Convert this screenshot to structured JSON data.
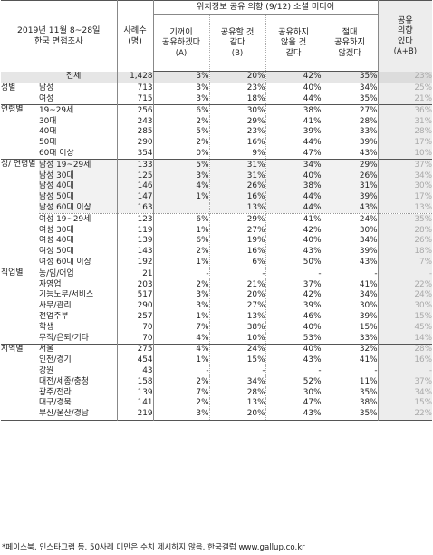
{
  "header": {
    "survey_line1": "2019년 11월 8~28일",
    "survey_line2": "한국 면접조사",
    "sample_line1": "사례수",
    "sample_line2": "(명)",
    "intent_title": "위치정보 공유 의향 (9/12) 소셜 미디어",
    "columns": [
      {
        "l1": "기꺼이",
        "l2": "공유하겠다",
        "l3": "(A)"
      },
      {
        "l1": "공유할 것",
        "l2": "같다",
        "l3": "(B)"
      },
      {
        "l1": "공유하지",
        "l2": "않을 것",
        "l3": "같다"
      },
      {
        "l1": "절대",
        "l2": "공유하지",
        "l3": "않겠다"
      }
    ],
    "share_l1": "공유",
    "share_l2": "의향",
    "share_l3": "있다",
    "share_l4": "(A+B)"
  },
  "rows": [
    {
      "group": "",
      "label": "전체",
      "n": "1,428",
      "a": "3%",
      "b": "20%",
      "c": "42%",
      "d": "35%",
      "ab": "23%",
      "total": true
    },
    {
      "group": "성별",
      "label": "남성",
      "n": "713",
      "a": "3%",
      "b": "23%",
      "c": "40%",
      "d": "34%",
      "ab": "25%",
      "gtop": true
    },
    {
      "group": "",
      "label": "여성",
      "n": "715",
      "a": "3%",
      "b": "18%",
      "c": "44%",
      "d": "35%",
      "ab": "21%"
    },
    {
      "group": "연령별",
      "label": "19~29세",
      "n": "256",
      "a": "6%",
      "b": "30%",
      "c": "38%",
      "d": "27%",
      "ab": "36%",
      "gtop": true
    },
    {
      "group": "",
      "label": "30대",
      "n": "243",
      "a": "2%",
      "b": "29%",
      "c": "41%",
      "d": "28%",
      "ab": "31%"
    },
    {
      "group": "",
      "label": "40대",
      "n": "285",
      "a": "5%",
      "b": "23%",
      "c": "39%",
      "d": "33%",
      "ab": "28%"
    },
    {
      "group": "",
      "label": "50대",
      "n": "290",
      "a": "2%",
      "b": "16%",
      "c": "44%",
      "d": "39%",
      "ab": "17%"
    },
    {
      "group": "",
      "label": "60대 이상",
      "n": "354",
      "a": "0%",
      "b": "9%",
      "c": "47%",
      "d": "43%",
      "ab": "10%"
    },
    {
      "group": "성/ 연령별",
      "label": "남성 19~29세",
      "n": "133",
      "a": "5%",
      "b": "31%",
      "c": "34%",
      "d": "29%",
      "ab": "37%",
      "gtop": true,
      "shade": true
    },
    {
      "group": "",
      "label": "남성 30대",
      "n": "125",
      "a": "3%",
      "b": "31%",
      "c": "40%",
      "d": "26%",
      "ab": "34%",
      "shade": true
    },
    {
      "group": "",
      "label": "남성 40대",
      "n": "146",
      "a": "4%",
      "b": "26%",
      "c": "38%",
      "d": "31%",
      "ab": "30%",
      "shade": true
    },
    {
      "group": "",
      "label": "남성 50대",
      "n": "147",
      "a": "1%",
      "b": "16%",
      "c": "44%",
      "d": "39%",
      "ab": "17%",
      "shade": true
    },
    {
      "group": "",
      "label": "남성 60대 이상",
      "n": "163",
      "a": "",
      "b": "13%",
      "c": "44%",
      "d": "43%",
      "ab": "13%",
      "shade": true
    },
    {
      "group": "",
      "label": "여성 19~29세",
      "n": "123",
      "a": "6%",
      "b": "29%",
      "c": "41%",
      "d": "24%",
      "ab": "35%",
      "stop": true
    },
    {
      "group": "",
      "label": "여성 30대",
      "n": "119",
      "a": "1%",
      "b": "27%",
      "c": "42%",
      "d": "30%",
      "ab": "28%"
    },
    {
      "group": "",
      "label": "여성 40대",
      "n": "139",
      "a": "6%",
      "b": "19%",
      "c": "40%",
      "d": "34%",
      "ab": "26%"
    },
    {
      "group": "",
      "label": "여성 50대",
      "n": "143",
      "a": "2%",
      "b": "16%",
      "c": "43%",
      "d": "39%",
      "ab": "18%"
    },
    {
      "group": "",
      "label": "여성 60대 이상",
      "n": "192",
      "a": "1%",
      "b": "6%",
      "c": "50%",
      "d": "43%",
      "ab": "7%"
    },
    {
      "group": "직업별",
      "label": "농/임/어업",
      "n": "21",
      "a": "-",
      "b": "-",
      "c": "-",
      "d": "-",
      "ab": "-",
      "gtop": true
    },
    {
      "group": "",
      "label": "자영업",
      "n": "203",
      "a": "2%",
      "b": "21%",
      "c": "37%",
      "d": "41%",
      "ab": "22%"
    },
    {
      "group": "",
      "label": "기능노무/서비스",
      "n": "517",
      "a": "3%",
      "b": "20%",
      "c": "42%",
      "d": "34%",
      "ab": "24%"
    },
    {
      "group": "",
      "label": "사무/관리",
      "n": "290",
      "a": "3%",
      "b": "27%",
      "c": "39%",
      "d": "30%",
      "ab": "30%"
    },
    {
      "group": "",
      "label": "전업주부",
      "n": "257",
      "a": "1%",
      "b": "13%",
      "c": "46%",
      "d": "39%",
      "ab": "15%"
    },
    {
      "group": "",
      "label": "학생",
      "n": "70",
      "a": "7%",
      "b": "38%",
      "c": "40%",
      "d": "15%",
      "ab": "45%"
    },
    {
      "group": "",
      "label": "무직/은퇴/기타",
      "n": "70",
      "a": "4%",
      "b": "10%",
      "c": "53%",
      "d": "33%",
      "ab": "14%"
    },
    {
      "group": "지역별",
      "label": "서울",
      "n": "275",
      "a": "4%",
      "b": "24%",
      "c": "40%",
      "d": "32%",
      "ab": "28%",
      "gtop": true
    },
    {
      "group": "",
      "label": "인천/경기",
      "n": "454",
      "a": "1%",
      "b": "15%",
      "c": "43%",
      "d": "41%",
      "ab": "16%"
    },
    {
      "group": "",
      "label": "강원",
      "n": "43",
      "a": "-",
      "b": "-",
      "c": "-",
      "d": "-",
      "ab": "-"
    },
    {
      "group": "",
      "label": "대전/세종/충청",
      "n": "158",
      "a": "2%",
      "b": "34%",
      "c": "52%",
      "d": "11%",
      "ab": "37%"
    },
    {
      "group": "",
      "label": "광주/전라",
      "n": "139",
      "a": "7%",
      "b": "28%",
      "c": "30%",
      "d": "35%",
      "ab": "34%"
    },
    {
      "group": "",
      "label": "대구/경북",
      "n": "141",
      "a": "2%",
      "b": "13%",
      "c": "47%",
      "d": "38%",
      "ab": "15%"
    },
    {
      "group": "",
      "label": "부산/울산/경남",
      "n": "219",
      "a": "3%",
      "b": "20%",
      "c": "43%",
      "d": "35%",
      "ab": "22%"
    }
  ],
  "footnote": "*페이스북, 인스타그램 등. 50사례 미만은 수치 제시하지 않음. 한국갤럽 www.gallup.co.kr"
}
